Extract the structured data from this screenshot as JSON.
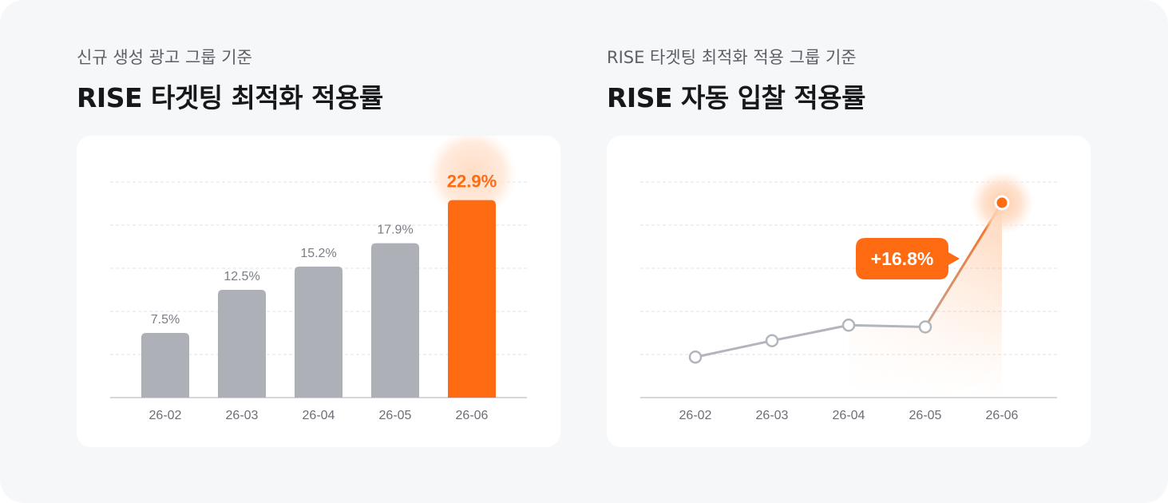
{
  "colors": {
    "accent": "#ff6b12",
    "bar": "#aeb0b8",
    "line": "#b3b5bd",
    "grid": "#e2e3e6",
    "axis": "#c9cace"
  },
  "left": {
    "subtitle": "신규 생성 광고 그룹 기준",
    "title": "RISE 타겟팅 최적화 적용률"
  },
  "right": {
    "subtitle": "RISE 타겟팅 최적화 적용 그룹 기준",
    "title": "RISE 자동 입찰 적용률",
    "callout": "+16.8%"
  },
  "chart_data": [
    {
      "type": "bar",
      "title": "RISE 타겟팅 최적화 적용률",
      "categories": [
        "26-02",
        "26-03",
        "26-04",
        "26-05",
        "26-06"
      ],
      "values": [
        7.5,
        12.5,
        15.2,
        17.9,
        22.9
      ],
      "value_labels": [
        "7.5%",
        "12.5%",
        "15.2%",
        "17.9%",
        "22.9%"
      ],
      "highlight_index": 4,
      "ylim": [
        0,
        25
      ],
      "grid": true,
      "legend": "none"
    },
    {
      "type": "line",
      "title": "RISE 자동 입찰 적용률",
      "categories": [
        "26-02",
        "26-03",
        "26-04",
        "26-05",
        "26-06"
      ],
      "values": [
        4.7,
        6.6,
        8.4,
        8.2,
        22.6
      ],
      "highlight_index": 4,
      "annotation": "+16.8%",
      "ylim": [
        0,
        25
      ],
      "grid": true,
      "legend": "none"
    }
  ]
}
